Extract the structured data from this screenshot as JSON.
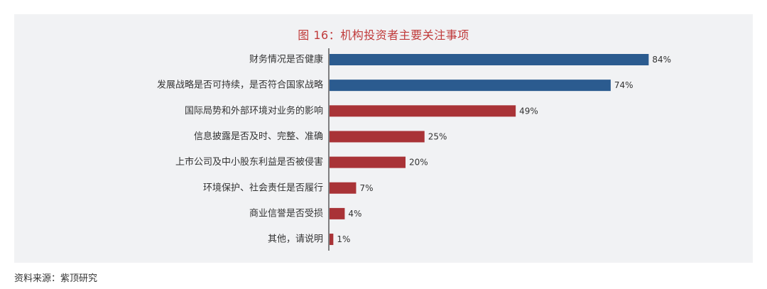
{
  "chart_data": {
    "type": "bar",
    "orientation": "horizontal",
    "title": "图 16：机构投资者主要关注事项",
    "categories": [
      "财务情况是否健康",
      "发展战略是否可持续，是否符合国家战略",
      "国际局势和外部环境对业务的影响",
      "信息披露是否及时、完整、准确",
      "上市公司及中小股东利益是否被侵害",
      "环境保护、社会责任是否履行",
      "商业信誉是否受损",
      "其他，请说明"
    ],
    "values": [
      84,
      74,
      49,
      25,
      20,
      7,
      4,
      1
    ],
    "value_labels": [
      "84%",
      "74%",
      "49%",
      "25%",
      "20%",
      "7%",
      "4%",
      "1%"
    ],
    "unit": "%",
    "xlim": [
      0,
      100
    ],
    "grid": false,
    "legend": "none",
    "colors": {
      "highlight": "#2b5b8f",
      "default": "#a93337",
      "title": "#c03a3a",
      "axis": "#333333",
      "panel_bg": "#f1f2f4"
    },
    "highlight_count": 2
  },
  "source": "资料来源：紫顶研究"
}
